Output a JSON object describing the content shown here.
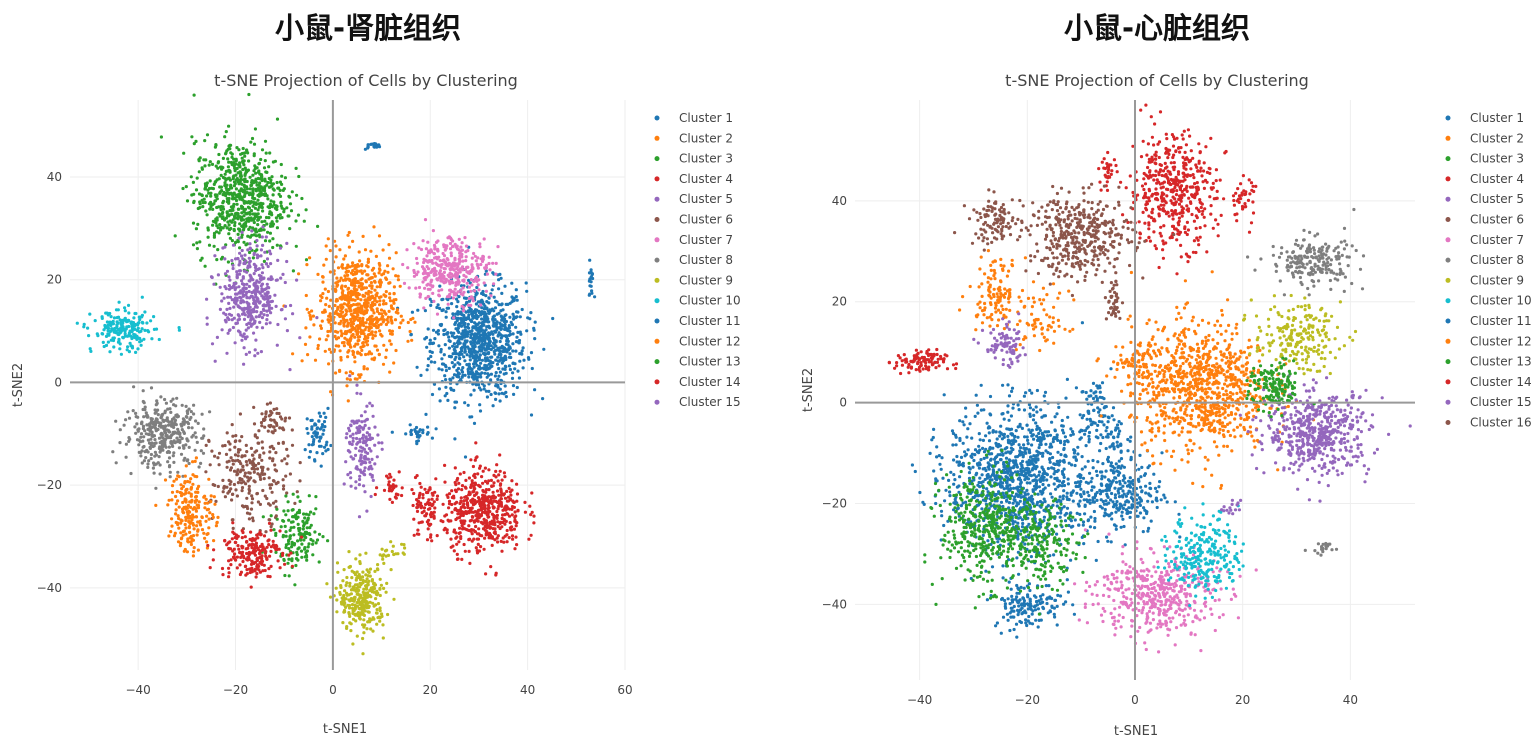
{
  "panels": [
    {
      "heading": "小鼠-肾脏组织"
    },
    {
      "heading": "小鼠-心脏组织"
    }
  ],
  "chart_data": [
    {
      "type": "scatter",
      "title": "t-SNE Projection of Cells by Clustering",
      "xlabel": "t-SNE1",
      "ylabel": "t-SNE2",
      "xlim": [
        -54,
        60
      ],
      "ylim": [
        -56,
        55
      ],
      "xticks": [
        -40,
        -20,
        0,
        20,
        40,
        60
      ],
      "yticks": [
        -40,
        -20,
        0,
        20,
        40
      ],
      "grid": true,
      "zero_lines": true,
      "legend_position": "right",
      "note_series_format": "each series given as gaussian blobs [center_x, center_y, spread_x, spread_y, approx_points] in t-SNE units",
      "series": [
        {
          "name": "Cluster 1",
          "color": "#1f77b4",
          "blobs": [
            [
              30,
              8,
              6,
              7,
              900
            ],
            [
              -3,
              -10,
              1.5,
              3,
              60
            ],
            [
              17,
              -10,
              2,
              1,
              30
            ]
          ]
        },
        {
          "name": "Cluster 2",
          "color": "#ff7f0e",
          "blobs": [
            [
              5,
              14,
              5,
              7,
              700
            ]
          ]
        },
        {
          "name": "Cluster 3",
          "color": "#2ca02c",
          "blobs": [
            [
              -19,
              36,
              6,
              7,
              700
            ]
          ]
        },
        {
          "name": "Cluster 4",
          "color": "#d62728",
          "blobs": [
            [
              31,
              -25,
              5,
              5,
              500
            ],
            [
              19,
              -25,
              2,
              4,
              80
            ],
            [
              12,
              -20,
              1.5,
              2,
              30
            ]
          ]
        },
        {
          "name": "Cluster 5",
          "color": "#9467bd",
          "blobs": [
            [
              -17,
              17,
              4,
              6,
              400
            ]
          ]
        },
        {
          "name": "Cluster 6",
          "color": "#8c564b",
          "blobs": [
            [
              -17,
              -18,
              5,
              6,
              250
            ],
            [
              -12,
              -7,
              2,
              2,
              40
            ]
          ]
        },
        {
          "name": "Cluster 7",
          "color": "#e377c2",
          "blobs": [
            [
              24,
              22,
              5,
              4,
              350
            ]
          ]
        },
        {
          "name": "Cluster 8",
          "color": "#7f7f7f",
          "blobs": [
            [
              -35,
              -10,
              5,
              4,
              350
            ]
          ]
        },
        {
          "name": "Cluster 9",
          "color": "#bcbd22",
          "blobs": [
            [
              6,
              -42,
              3,
              4,
              300
            ],
            [
              12,
              -33,
              2,
              1,
              20
            ]
          ]
        },
        {
          "name": "Cluster 10",
          "color": "#17becf",
          "blobs": [
            [
              -43,
              10,
              4,
              2.5,
              200
            ]
          ]
        },
        {
          "name": "Cluster 11",
          "color": "#1f77b4",
          "blobs": [
            [
              8,
              46,
              1,
              0.4,
              20
            ],
            [
              53,
              20,
              0.4,
              2,
              20
            ]
          ]
        },
        {
          "name": "Cluster 12",
          "color": "#ff7f0e",
          "blobs": [
            [
              -29,
              -25,
              3,
              5,
              200
            ]
          ]
        },
        {
          "name": "Cluster 13",
          "color": "#2ca02c",
          "blobs": [
            [
              -7,
              -30,
              3,
              4,
              150
            ]
          ]
        },
        {
          "name": "Cluster 14",
          "color": "#d62728",
          "blobs": [
            [
              -17,
              -33,
              4,
              3,
              200
            ]
          ]
        },
        {
          "name": "Cluster 15",
          "color": "#9467bd",
          "blobs": [
            [
              6,
              -13,
              2,
              6,
              150
            ]
          ]
        }
      ]
    },
    {
      "type": "scatter",
      "title": "t-SNE Projection of Cells by Clustering",
      "xlabel": "t-SNE1",
      "ylabel": "t-SNE2",
      "xlim": [
        -52,
        52
      ],
      "ylim": [
        -55,
        60
      ],
      "xticks": [
        -40,
        -20,
        0,
        20,
        40
      ],
      "yticks": [
        -40,
        -20,
        0,
        20,
        40
      ],
      "grid": true,
      "zero_lines": true,
      "legend_position": "right",
      "note_series_format": "each series given as gaussian blobs [center_x, center_y, spread_x, spread_y, approx_points] in t-SNE units",
      "series": [
        {
          "name": "Cluster 1",
          "color": "#1f77b4",
          "blobs": [
            [
              -22,
              -15,
              8,
              9,
              1100
            ],
            [
              -3,
              -18,
              5,
              5,
              300
            ],
            [
              -20,
              -40,
              4,
              3,
              150
            ],
            [
              -7,
              -2,
              2,
              4,
              80
            ]
          ]
        },
        {
          "name": "Cluster 2",
          "color": "#ff7f0e",
          "blobs": [
            [
              12,
              3,
              8,
              8,
              900
            ],
            [
              -26,
              22,
              3,
              4,
              120
            ],
            [
              -17,
              16,
              3,
              4,
              60
            ]
          ]
        },
        {
          "name": "Cluster 3",
          "color": "#2ca02c",
          "blobs": [
            [
              -28,
              -25,
              5,
              7,
              400
            ],
            [
              -17,
              -28,
              4,
              5,
              200
            ]
          ]
        },
        {
          "name": "Cluster 4",
          "color": "#d62728",
          "blobs": [
            [
              7,
              42,
              5,
              7,
              450
            ],
            [
              20,
              40,
              1.5,
              3,
              40
            ],
            [
              -5,
              46,
              1,
              2,
              30
            ]
          ]
        },
        {
          "name": "Cluster 5",
          "color": "#9467bd",
          "blobs": [
            [
              34,
              -6,
              6,
              5,
              500
            ],
            [
              -24,
              11,
              2.5,
              2.5,
              80
            ]
          ]
        },
        {
          "name": "Cluster 6",
          "color": "#8c564b",
          "blobs": [
            [
              -10,
              33,
              6,
              5,
              400
            ],
            [
              -26,
              36,
              3,
              3,
              100
            ]
          ]
        },
        {
          "name": "Cluster 7",
          "color": "#e377c2",
          "blobs": [
            [
              4,
              -38,
              7,
              5,
              450
            ]
          ]
        },
        {
          "name": "Cluster 8",
          "color": "#7f7f7f",
          "blobs": [
            [
              33,
              28,
              5,
              3,
              200
            ],
            [
              35,
              -29,
              1.5,
              1,
              20
            ]
          ]
        },
        {
          "name": "Cluster 9",
          "color": "#bcbd22",
          "blobs": [
            [
              30,
              13,
              5,
              4,
              200
            ]
          ]
        },
        {
          "name": "Cluster 10",
          "color": "#17becf",
          "blobs": [
            [
              13,
              -30,
              4,
              5,
              250
            ]
          ]
        },
        {
          "name": "Cluster 11",
          "color": "#1f77b4",
          "blobs": [
            [
              -3,
              -7,
              1.5,
              2,
              30
            ]
          ]
        },
        {
          "name": "Cluster 12",
          "color": "#ff7f0e",
          "blobs": [
            [
              0,
              8,
              3,
              2,
              60
            ]
          ]
        },
        {
          "name": "Cluster 13",
          "color": "#2ca02c",
          "blobs": [
            [
              26,
              3,
              3,
              3,
              150
            ]
          ]
        },
        {
          "name": "Cluster 14",
          "color": "#d62728",
          "blobs": [
            [
              -40,
              8,
              3,
              1.5,
              100
            ]
          ]
        },
        {
          "name": "Cluster 15",
          "color": "#9467bd",
          "blobs": [
            [
              18,
              -21,
              1,
              1,
              15
            ]
          ]
        },
        {
          "name": "Cluster 16",
          "color": "#8c564b",
          "blobs": [
            [
              -4,
              20,
              1,
              3,
              40
            ]
          ]
        }
      ]
    }
  ]
}
